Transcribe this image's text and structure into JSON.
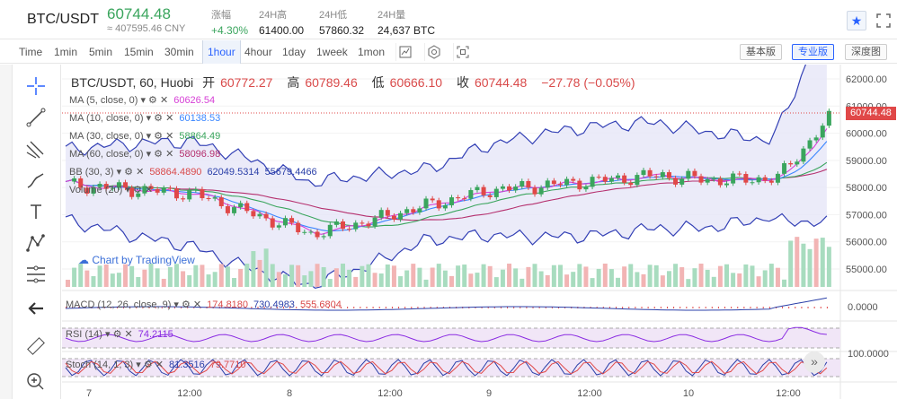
{
  "header": {
    "pair": "BTC/USDT",
    "price": "60744.48",
    "cny": "≈ 407595.46 CNY",
    "stats": [
      {
        "label": "涨幅",
        "value": "+4.30%"
      },
      {
        "label": "24H高",
        "value": "61400.00"
      },
      {
        "label": "24H低",
        "value": "57860.32"
      },
      {
        "label": "24H量",
        "value": "24,637 BTC"
      }
    ]
  },
  "toolbar": {
    "timeframes": [
      "Time",
      "1min",
      "5min",
      "15min",
      "30min",
      "1hour",
      "4hour",
      "1day",
      "1week",
      "1mon"
    ],
    "active": "1hour",
    "views": [
      "基本版",
      "专业版",
      "深度图"
    ],
    "active_view": "专业版"
  },
  "chart": {
    "title": "BTC/USDT, 60, Huobi",
    "ohlc": {
      "o_label": "开",
      "o": "60772.27",
      "h_label": "高",
      "h": "60789.46",
      "l_label": "低",
      "l": "60666.10",
      "c_label": "收",
      "c": "60744.48",
      "change": "−27.78 (−0.05%)"
    },
    "indicators": [
      {
        "label": "MA (5, close, 0)",
        "value": "60626.54",
        "color": "#d63fd6"
      },
      {
        "label": "MA (10, close, 0)",
        "value": "60138.53",
        "color": "#3a86ff"
      },
      {
        "label": "MA (30, close, 0)",
        "value": "58864.49",
        "color": "#3aa55d"
      },
      {
        "label": "MA (60, close, 0)",
        "value": "58096.98",
        "color": "#b5306e"
      }
    ],
    "bb": {
      "label": "BB (30, 3)",
      "values": [
        "58864.4890",
        "62049.5314",
        "55679.4466"
      ]
    },
    "volume": {
      "label": "Volume (20)"
    },
    "watermark": "Chart by TradingView",
    "price_badge": "60744.48",
    "y_ticks": [
      "62000.00",
      "61000.00",
      "60000.00",
      "59000.00",
      "58000.00",
      "57000.00",
      "56000.00",
      "55000.00"
    ],
    "x_ticks": [
      "7",
      "12:00",
      "8",
      "12:00",
      "9",
      "12:00",
      "10",
      "12:00"
    ],
    "macd": {
      "label": "MACD (12, 26, close, 9)",
      "values": [
        "174.8180",
        "730.4983",
        "555.6804"
      ],
      "tick": "0.0000"
    },
    "rsi": {
      "label": "RSI (14)",
      "value": "74.2115"
    },
    "stoch": {
      "label": "Stoch (14, 1, 3)",
      "values": [
        "81.3516",
        "79.7710"
      ],
      "tick": "100.0000"
    }
  },
  "colors": {
    "up": "#3aa55d",
    "down": "#e04848",
    "accent": "#2962ff"
  }
}
